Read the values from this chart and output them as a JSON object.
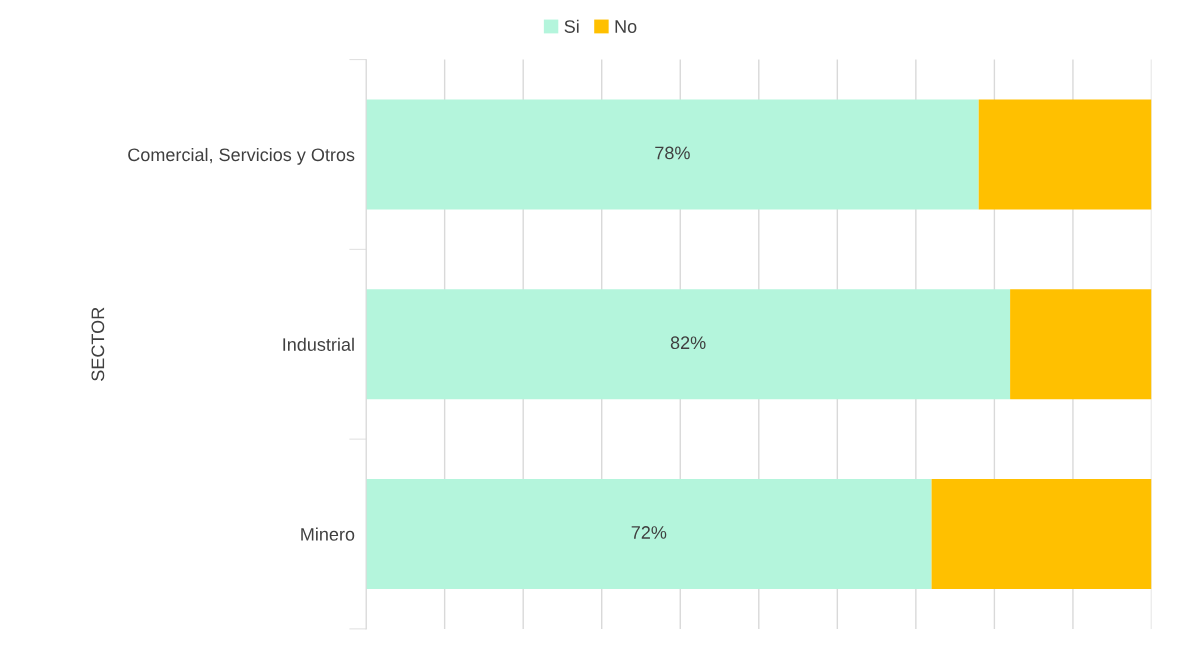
{
  "chart_data": {
    "type": "bar",
    "orientation": "horizontal",
    "stacked": true,
    "ylabel": "SECTOR",
    "categories": [
      "Comercial, Servicios y Otros",
      "Industrial",
      "Minero"
    ],
    "series": [
      {
        "name": "Si",
        "color": "#b4f5dc",
        "values": [
          78,
          82,
          72
        ],
        "value_labels": [
          "78%",
          "82%",
          "72%"
        ]
      },
      {
        "name": "No",
        "color": "#ffc000",
        "values": [
          22,
          18,
          28
        ]
      }
    ],
    "xlim": [
      0,
      100
    ],
    "xticks": [
      {
        "value": 0,
        "label": null
      },
      {
        "value": 10,
        "label": null
      },
      {
        "value": 20,
        "label": null
      },
      {
        "value": 30,
        "label": null
      },
      {
        "value": 40,
        "label": null
      },
      {
        "value": 50,
        "label": null
      },
      {
        "value": 60,
        "label": null
      },
      {
        "value": 70,
        "label": null
      },
      {
        "value": 80,
        "label": null
      },
      {
        "value": 90,
        "label": null
      },
      {
        "value": 100,
        "label": null
      }
    ],
    "tick_labels": "y",
    "grid": "x",
    "legend": "top"
  }
}
